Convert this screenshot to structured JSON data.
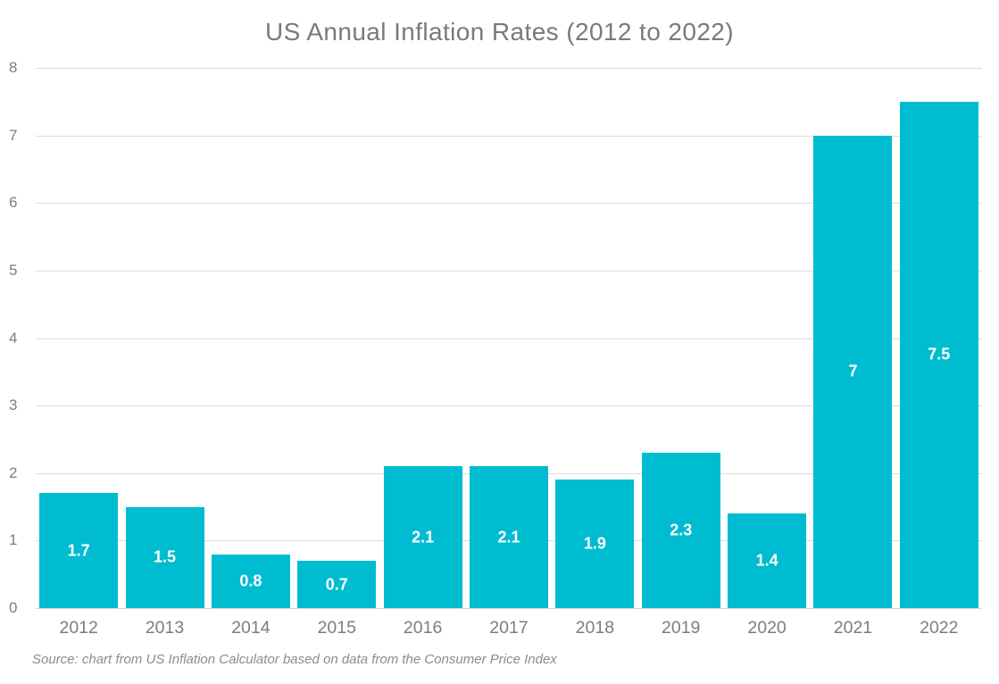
{
  "title": "US Annual Inflation Rates (2012 to 2022)",
  "source_note": "Source: chart from US Inflation Calculator based on data from the Consumer Price Index",
  "colors": {
    "bar": "#00bcd1",
    "title_text": "#7a7a7a",
    "axis_text": "#7d7d7d",
    "gridline": "#dcdcdc",
    "axis_line": "#d6d6d6",
    "bar_label_text": "#ffffff",
    "source_text": "#8c8c8c",
    "background": "#ffffff"
  },
  "chart_data": {
    "type": "bar",
    "title": "US Annual Inflation Rates (2012 to 2022)",
    "categories": [
      "2012",
      "2013",
      "2014",
      "2015",
      "2016",
      "2017",
      "2018",
      "2019",
      "2020",
      "2021",
      "2022"
    ],
    "values": [
      1.7,
      1.5,
      0.8,
      0.7,
      2.1,
      2.1,
      1.9,
      2.3,
      1.4,
      7,
      7.5
    ],
    "bar_labels": [
      "1.7",
      "1.5",
      "0.8",
      "0.7",
      "2.1",
      "2.1",
      "1.9",
      "2.3",
      "1.4",
      "7",
      "7.5"
    ],
    "xlabel": "",
    "ylabel": "",
    "ylim": [
      0,
      8
    ],
    "yticks": [
      0,
      1,
      2,
      3,
      4,
      5,
      6,
      7,
      8
    ],
    "grid": "horizontal",
    "legend": "none",
    "annotation": "Source: chart from US Inflation Calculator based on data from the Consumer Price Index"
  }
}
